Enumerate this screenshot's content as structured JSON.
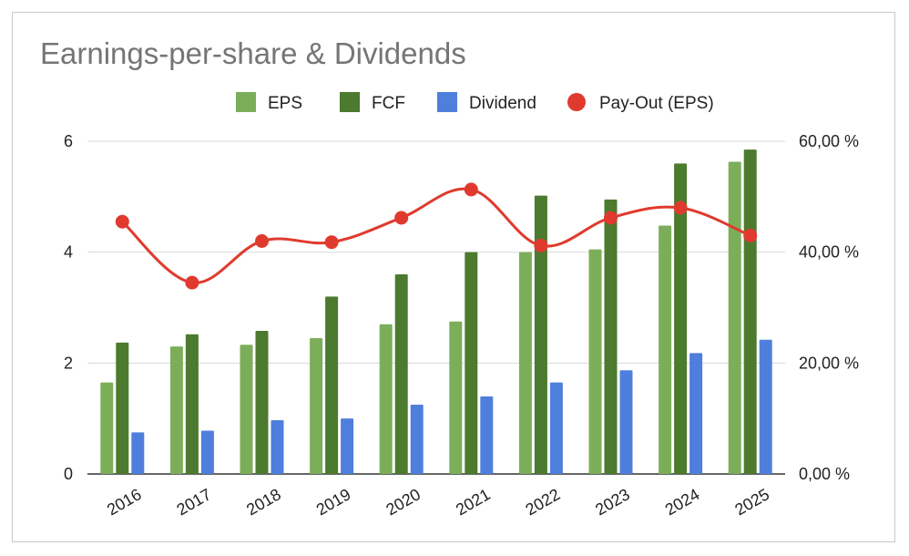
{
  "chart_data": {
    "type": "bar",
    "title": "Earnings-per-share & Dividends",
    "categories": [
      "2016",
      "2017",
      "2018",
      "2019",
      "2020",
      "2021",
      "2022",
      "2023",
      "2024",
      "2025"
    ],
    "series": [
      {
        "name": "EPS",
        "type": "bar",
        "axis": "left",
        "color": "#7cae5a",
        "values": [
          1.65,
          2.3,
          2.33,
          2.45,
          2.7,
          2.75,
          4.0,
          4.05,
          4.48,
          5.63
        ]
      },
      {
        "name": "FCF",
        "type": "bar",
        "axis": "left",
        "color": "#4c7a2e",
        "values": [
          2.37,
          2.52,
          2.58,
          3.2,
          3.6,
          4.0,
          5.02,
          4.95,
          5.6,
          5.85
        ]
      },
      {
        "name": "Dividend",
        "type": "bar",
        "axis": "left",
        "color": "#4f7fdc",
        "values": [
          0.75,
          0.78,
          0.97,
          1.0,
          1.25,
          1.4,
          1.65,
          1.87,
          2.18,
          2.42
        ]
      },
      {
        "name": "Pay-Out (EPS)",
        "type": "line",
        "axis": "right",
        "color": "#e03a2e",
        "values": [
          45.5,
          34.5,
          42.0,
          41.8,
          46.2,
          51.3,
          41.2,
          46.2,
          48.0,
          43.0
        ]
      }
    ],
    "ylim": [
      0,
      6
    ],
    "yticks": [
      "0",
      "2",
      "4",
      "6"
    ],
    "y2lim": [
      0,
      60
    ],
    "y2ticks": [
      "0,00 %",
      "20,00 %",
      "40,00 %",
      "60,00 %"
    ],
    "legend_position": "top",
    "grid": true
  }
}
